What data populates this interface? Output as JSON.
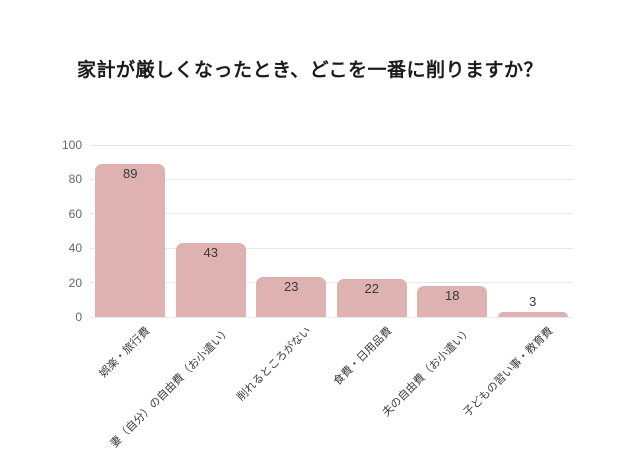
{
  "chart_data": {
    "type": "bar",
    "title": "家計が厳しくなったとき、どこを一番に削りますか？",
    "categories": [
      "娯楽・旅行費",
      "妻（自分）の自由費（お小遣い）",
      "削れるところがない",
      "食費・日用品費",
      "夫の自由費（お小遣い）",
      "子どもの習い事・教育費"
    ],
    "values": [
      89,
      43,
      23,
      22,
      18,
      3
    ],
    "xlabel": "",
    "ylabel": "",
    "ylim": [
      0,
      100
    ],
    "yticks": [
      0,
      20,
      40,
      60,
      80,
      100
    ],
    "grid": true,
    "legend": false,
    "value_labels_shown": true,
    "colors": {
      "bar": "#dfb2b2",
      "gridline": "#e8e8e8",
      "axis_tick_text": "#666666",
      "value_label_text": "#3a3a3a",
      "category_label_text": "#3c3c3c",
      "title_text": "#1c1c1c",
      "background": "#ffffff"
    }
  }
}
